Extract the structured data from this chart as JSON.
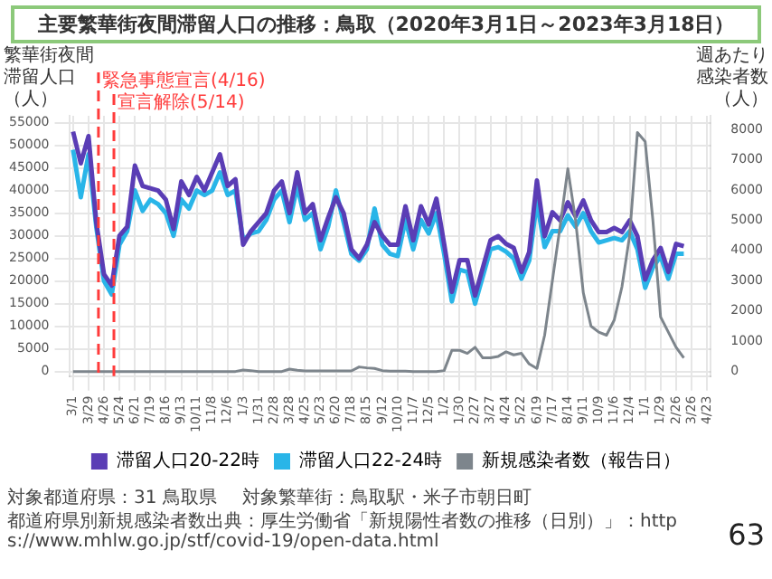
{
  "chart_data": {
    "type": "line",
    "title": "主要繁華街夜間滞留人口の推移：鳥取（2020年3月1日～2023年3月18日）",
    "ylabel": "繁華街夜間滞留人口（人）",
    "y2label": "週あたり感染者数（人）",
    "x": [
      "2020-03-01",
      "2020-03-15",
      "2020-03-29",
      "2020-04-12",
      "2020-04-26",
      "2020-05-10",
      "2020-05-24",
      "2020-06-07",
      "2020-06-21",
      "2020-07-05",
      "2020-07-19",
      "2020-08-02",
      "2020-08-16",
      "2020-08-30",
      "2020-09-13",
      "2020-09-27",
      "2020-10-11",
      "2020-10-25",
      "2020-11-08",
      "2020-11-22",
      "2020-12-06",
      "2020-12-20",
      "2021-01-03",
      "2021-01-17",
      "2021-01-31",
      "2021-02-14",
      "2021-02-28",
      "2021-03-14",
      "2021-03-28",
      "2021-04-11",
      "2021-04-25",
      "2021-05-09",
      "2021-05-23",
      "2021-06-06",
      "2021-06-20",
      "2021-07-04",
      "2021-07-18",
      "2021-08-01",
      "2021-08-15",
      "2021-08-29",
      "2021-09-12",
      "2021-09-26",
      "2021-10-10",
      "2021-10-24",
      "2021-11-07",
      "2021-11-21",
      "2021-12-05",
      "2021-12-19",
      "2022-01-02",
      "2022-01-16",
      "2022-01-30",
      "2022-02-13",
      "2022-02-27",
      "2022-03-13",
      "2022-03-27",
      "2022-04-10",
      "2022-04-24",
      "2022-05-08",
      "2022-05-22",
      "2022-06-05",
      "2022-06-19",
      "2022-07-03",
      "2022-07-17",
      "2022-07-31",
      "2022-08-14",
      "2022-08-28",
      "2022-09-11",
      "2022-09-25",
      "2022-10-09",
      "2022-10-23",
      "2022-11-06",
      "2022-11-20",
      "2022-12-04",
      "2022-12-18",
      "2023-01-01",
      "2023-01-15",
      "2023-01-29",
      "2023-02-12",
      "2023-02-26",
      "2023-03-12"
    ],
    "series": [
      {
        "name": "滞留人口20-22時",
        "color": "#5a3db5",
        "values": [
          53000,
          46000,
          52000,
          33000,
          21500,
          19000,
          30000,
          32000,
          45500,
          41000,
          40500,
          40000,
          38000,
          31500,
          42000,
          39000,
          43000,
          40000,
          44000,
          48000,
          41000,
          42500,
          28000,
          31000,
          33000,
          35000,
          40000,
          42000,
          35000,
          44000,
          35000,
          37000,
          29000,
          34000,
          38500,
          35000,
          27000,
          25000,
          28000,
          33000,
          30000,
          28000,
          28000,
          36500,
          29000,
          36500,
          32500,
          38200,
          28200,
          17600,
          24600,
          24600,
          16800,
          22900,
          29000,
          29900,
          28200,
          27300,
          22000,
          26400,
          42200,
          29900,
          35200,
          33400,
          37400,
          34300,
          37800,
          33400,
          30800,
          30800,
          31700,
          30800,
          33400,
          29900,
          20300,
          24600,
          27300,
          22000,
          28200,
          27700
        ]
      },
      {
        "name": "滞留人口22-24時",
        "color": "#29b5e8",
        "values": [
          49000,
          38500,
          48000,
          32000,
          20000,
          17000,
          28000,
          31000,
          40000,
          35500,
          38000,
          37000,
          35000,
          30000,
          38000,
          36000,
          40000,
          39000,
          40000,
          44000,
          39000,
          40000,
          29000,
          30500,
          31000,
          33500,
          38000,
          40000,
          33000,
          41000,
          33500,
          35000,
          27000,
          32000,
          40000,
          33000,
          26000,
          24500,
          27000,
          36000,
          28000,
          26000,
          25500,
          33500,
          27000,
          33500,
          30500,
          35000,
          26000,
          15500,
          22500,
          22000,
          15000,
          21000,
          27000,
          27500,
          26500,
          25000,
          20500,
          24500,
          37500,
          27500,
          31000,
          31000,
          34500,
          32000,
          35000,
          31000,
          28500,
          29000,
          29500,
          29000,
          31000,
          27000,
          18500,
          23000,
          25500,
          20500,
          26000,
          26000
        ]
      },
      {
        "name": "新規感染者数（報告日）",
        "color": "#7d858c",
        "axis": "y2",
        "values": [
          0,
          0,
          0,
          0,
          0,
          0,
          0,
          0,
          0,
          0,
          0,
          0,
          0,
          0,
          0,
          0,
          0,
          0,
          0,
          0,
          0,
          0,
          50,
          30,
          0,
          0,
          0,
          0,
          80,
          40,
          20,
          20,
          20,
          20,
          20,
          20,
          20,
          150,
          120,
          100,
          30,
          10,
          10,
          10,
          0,
          0,
          0,
          0,
          30,
          700,
          700,
          600,
          800,
          450,
          450,
          500,
          650,
          550,
          600,
          250,
          100,
          1200,
          3000,
          4800,
          6700,
          5000,
          2600,
          1500,
          1300,
          1200,
          1700,
          2800,
          4500,
          7900,
          7600,
          5000,
          1800,
          1300,
          800,
          450
        ]
      }
    ],
    "xlim": [
      "2020-02-23",
      "2023-04-30"
    ],
    "xticks": [
      {
        "value": "2020-03-01",
        "label": "3/1"
      },
      {
        "value": "2020-03-29",
        "label": "3/29"
      },
      {
        "value": "2020-04-26",
        "label": "4/26"
      },
      {
        "value": "2020-05-24",
        "label": "5/24"
      },
      {
        "value": "2020-06-21",
        "label": "6/21"
      },
      {
        "value": "2020-07-19",
        "label": "7/19"
      },
      {
        "value": "2020-08-16",
        "label": "8/16"
      },
      {
        "value": "2020-09-13",
        "label": "9/13"
      },
      {
        "value": "2020-10-11",
        "label": "10/11"
      },
      {
        "value": "2020-11-08",
        "label": "11/8"
      },
      {
        "value": "2020-12-06",
        "label": "12/6"
      },
      {
        "value": "2021-01-03",
        "label": "1/3"
      },
      {
        "value": "2021-01-31",
        "label": "1/31"
      },
      {
        "value": "2021-02-28",
        "label": "2/28"
      },
      {
        "value": "2021-03-28",
        "label": "3/28"
      },
      {
        "value": "2021-04-25",
        "label": "4/25"
      },
      {
        "value": "2021-05-23",
        "label": "5/23"
      },
      {
        "value": "2021-06-20",
        "label": "6/20"
      },
      {
        "value": "2021-07-18",
        "label": "7/18"
      },
      {
        "value": "2021-08-15",
        "label": "8/15"
      },
      {
        "value": "2021-09-12",
        "label": "9/12"
      },
      {
        "value": "2021-10-10",
        "label": "10/10"
      },
      {
        "value": "2021-11-07",
        "label": "11/7"
      },
      {
        "value": "2021-12-05",
        "label": "12/5"
      },
      {
        "value": "2022-01-02",
        "label": "1/2"
      },
      {
        "value": "2022-01-30",
        "label": "1/30"
      },
      {
        "value": "2022-02-27",
        "label": "2/27"
      },
      {
        "value": "2022-03-27",
        "label": "3/27"
      },
      {
        "value": "2022-04-24",
        "label": "4/24"
      },
      {
        "value": "2022-05-22",
        "label": "5/22"
      },
      {
        "value": "2022-06-19",
        "label": "6/19"
      },
      {
        "value": "2022-07-17",
        "label": "7/17"
      },
      {
        "value": "2022-08-14",
        "label": "8/14"
      },
      {
        "value": "2022-09-11",
        "label": "9/11"
      },
      {
        "value": "2022-10-09",
        "label": "10/9"
      },
      {
        "value": "2022-11-06",
        "label": "11/6"
      },
      {
        "value": "2022-12-04",
        "label": "12/4"
      },
      {
        "value": "2023-01-01",
        "label": "1/1"
      },
      {
        "value": "2023-01-29",
        "label": "1/29"
      },
      {
        "value": "2023-02-26",
        "label": "2/26"
      },
      {
        "value": "2023-03-26",
        "label": "3/26"
      },
      {
        "value": "2023-04-23",
        "label": "4/23"
      }
    ],
    "ylim": [
      -1000,
      56500
    ],
    "yticks": [
      0,
      5000,
      10000,
      15000,
      20000,
      25000,
      30000,
      35000,
      40000,
      45000,
      50000,
      55000
    ],
    "y2lim": [
      -150,
      8450
    ],
    "y2ticks": [
      0,
      1000,
      2000,
      3000,
      4000,
      5000,
      6000,
      7000,
      8000
    ],
    "ref_lines": [
      {
        "axis": "x",
        "value": "2020-04-16",
        "label": "緊急事態宣言(4/16)",
        "color": "#ff3b3b",
        "line_style": "dashed"
      },
      {
        "axis": "x",
        "value": "2020-05-14",
        "label": "宣言解除(5/14)",
        "color": "#ff3b3b",
        "line_style": "dashed"
      }
    ],
    "annotations": [
      "対象都道府県：31 鳥取県",
      "対象繁華街：鳥取駅・米子市朝日町",
      "都道府県別新規感染者数出典：厚生労働省「新規陽性者数の推移（日別）」：https://www.mhlw.go.jp/stf/covid-19/open-data.html",
      "63"
    ],
    "grid": true,
    "legend": "bottom",
    "marker": "none",
    "line_style": "solid"
  }
}
